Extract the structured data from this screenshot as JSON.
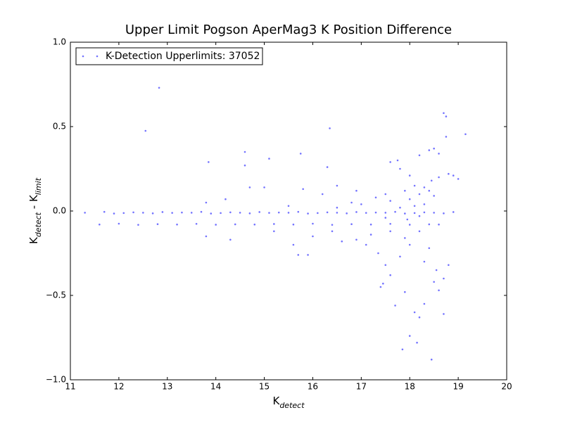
{
  "chart_data": {
    "type": "scatter",
    "title": "Upper Limit Pogson AperMag3 K Position Difference",
    "xlabel": [
      {
        "text": "K"
      },
      {
        "text": "detect",
        "subscript": true
      }
    ],
    "ylabel": [
      {
        "text": "K"
      },
      {
        "text": "detect",
        "subscript": true
      },
      {
        "text": " - K"
      },
      {
        "text": "limit",
        "subscript": true
      }
    ],
    "xlim": [
      11,
      20
    ],
    "xticks": [
      11,
      12,
      13,
      14,
      15,
      16,
      17,
      18,
      19,
      20
    ],
    "ylim": [
      -1.0,
      1.0
    ],
    "yticks": [
      {
        "value": -1.0,
        "label": "−1.0"
      },
      {
        "value": -0.5,
        "label": "−0.5"
      },
      {
        "value": 0,
        "label": "0.0"
      },
      {
        "value": 0.5,
        "label": "0.5"
      },
      {
        "value": 1.0,
        "label": "1.0"
      }
    ],
    "legend": "upper left",
    "series": [
      {
        "name": "K-Detection Upperlimits: 37052",
        "color": "#0000ff",
        "x": [
          11.3,
          11.7,
          11.9,
          12.1,
          12.3,
          12.5,
          12.7,
          12.9,
          13.1,
          13.3,
          13.5,
          13.7,
          13.9,
          14.1,
          14.3,
          14.5,
          14.7,
          14.9,
          15.1,
          15.3,
          15.5,
          15.7,
          15.9,
          16.1,
          16.3,
          16.5,
          16.7,
          16.9,
          17.1,
          17.3,
          17.5,
          17.7,
          17.9,
          18.1,
          18.3,
          18.5,
          18.7,
          18.9,
          11.6,
          12.0,
          12.4,
          12.8,
          13.2,
          13.6,
          14.0,
          14.4,
          14.8,
          15.2,
          15.6,
          16.0,
          16.4,
          16.8,
          17.2,
          17.6,
          18.0,
          18.4,
          18.6,
          12.83,
          12.55,
          16.35,
          19.15,
          18.7,
          18.75,
          14.6,
          15.1,
          13.85,
          15.75,
          16.3,
          14.6,
          18.5,
          18.4,
          18.2,
          18.6,
          18.75,
          17.6,
          17.75,
          17.8,
          18.0,
          18.1,
          18.3,
          18.45,
          18.6,
          18.8,
          17.9,
          18.2,
          18.4,
          17.5,
          17.3,
          16.9,
          16.5,
          16.2,
          15.8,
          15.0,
          14.7,
          14.2,
          13.8,
          16.8,
          17.0,
          17.6,
          18.0,
          18.5,
          18.9,
          19.0,
          17.4,
          17.45,
          17.6,
          17.9,
          18.1,
          18.2,
          18.0,
          17.85,
          18.15,
          18.45,
          18.7,
          18.6,
          18.5,
          18.3,
          17.7,
          18.7,
          18.8,
          17.35,
          17.5,
          17.8,
          18.0,
          18.3,
          18.55,
          17.1,
          16.9,
          16.6,
          15.9,
          15.7,
          15.6,
          14.3,
          13.8,
          17.2,
          17.9,
          18.4,
          18.2,
          17.6,
          16.4,
          15.2,
          16.0,
          17.8,
          18.1,
          18.3,
          17.5,
          17.95,
          18.2,
          16.5,
          15.5
        ],
        "values": [
          -0.01,
          -0.005,
          -0.015,
          -0.012,
          -0.008,
          -0.01,
          -0.014,
          -0.006,
          -0.011,
          -0.009,
          -0.01,
          -0.005,
          -0.015,
          -0.012,
          -0.008,
          -0.01,
          -0.014,
          -0.006,
          -0.011,
          -0.009,
          -0.01,
          -0.005,
          -0.015,
          -0.012,
          -0.008,
          -0.01,
          -0.014,
          -0.006,
          -0.011,
          -0.009,
          -0.01,
          -0.005,
          -0.015,
          -0.012,
          -0.008,
          -0.01,
          -0.014,
          -0.006,
          -0.08,
          -0.075,
          -0.082,
          -0.078,
          -0.08,
          -0.076,
          -0.081,
          -0.079,
          -0.08,
          -0.077,
          -0.08,
          -0.075,
          -0.082,
          -0.078,
          -0.08,
          -0.076,
          -0.081,
          -0.079,
          -0.08,
          0.73,
          0.475,
          0.49,
          0.455,
          0.58,
          0.56,
          0.35,
          0.31,
          0.29,
          0.34,
          0.26,
          0.27,
          0.37,
          0.36,
          0.33,
          0.34,
          0.44,
          0.29,
          0.3,
          0.25,
          0.21,
          0.15,
          0.14,
          0.18,
          0.2,
          0.22,
          0.12,
          0.1,
          0.12,
          0.1,
          0.08,
          0.12,
          0.15,
          0.1,
          0.13,
          0.14,
          0.14,
          0.07,
          0.05,
          0.05,
          0.04,
          0.06,
          0.07,
          0.09,
          0.21,
          0.19,
          -0.45,
          -0.43,
          -0.38,
          -0.48,
          -0.6,
          -0.63,
          -0.74,
          -0.82,
          -0.78,
          -0.88,
          -0.61,
          -0.47,
          -0.42,
          -0.55,
          -0.56,
          -0.4,
          -0.32,
          -0.25,
          -0.32,
          -0.27,
          -0.2,
          -0.3,
          -0.35,
          -0.2,
          -0.17,
          -0.18,
          -0.26,
          -0.26,
          -0.2,
          -0.17,
          -0.15,
          -0.14,
          -0.16,
          -0.22,
          -0.12,
          -0.12,
          -0.12,
          -0.12,
          -0.15,
          0.02,
          0.03,
          0.04,
          -0.04,
          -0.05,
          -0.03,
          0.02,
          0.03
        ]
      }
    ]
  }
}
